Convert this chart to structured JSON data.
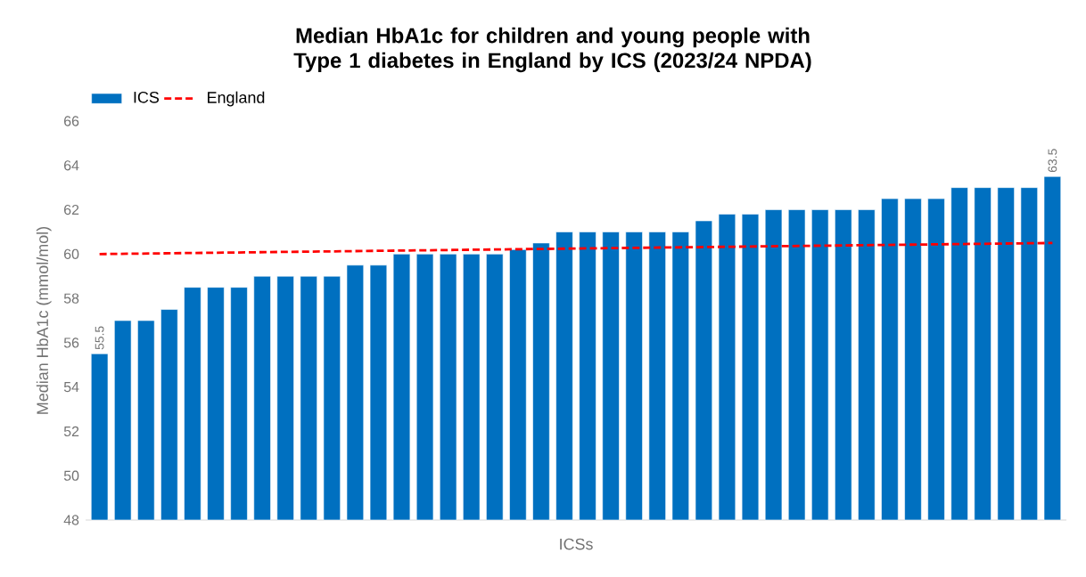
{
  "chart_data": {
    "type": "bar",
    "title": "Median HbA1c for children and young people with Type 1 diabetes in England by ICS (2023/24 NPDA)",
    "xlabel": "ICSs",
    "ylabel": "Median HbA1c (mmol/mol)",
    "categories": [
      null,
      null,
      null,
      null,
      null,
      null,
      null,
      null,
      null,
      null,
      null,
      null,
      null,
      null,
      null,
      null,
      null,
      null,
      null,
      null,
      null,
      null,
      null,
      null,
      null,
      null,
      null,
      null,
      null,
      null,
      null,
      null,
      null,
      null,
      null,
      null,
      null,
      null,
      null,
      null,
      null,
      null
    ],
    "series": [
      {
        "name": "ICS",
        "color": "#0070c0",
        "values": [
          55.5,
          57,
          57,
          57.5,
          58.5,
          58.5,
          58.5,
          59,
          59,
          59,
          59,
          59.5,
          59.5,
          60,
          60,
          60,
          60,
          60,
          60.2,
          60.5,
          61,
          61,
          61,
          61,
          61,
          61,
          61.5,
          61.8,
          61.8,
          62,
          62,
          62,
          62,
          62,
          62.5,
          62.5,
          62.5,
          63,
          63,
          63,
          63,
          63.5
        ],
        "value_labels": [
          "55.5",
          null,
          null,
          null,
          null,
          null,
          null,
          null,
          null,
          null,
          null,
          null,
          null,
          null,
          null,
          null,
          null,
          null,
          null,
          null,
          null,
          null,
          null,
          null,
          null,
          null,
          null,
          null,
          null,
          null,
          null,
          null,
          null,
          null,
          null,
          null,
          null,
          null,
          null,
          null,
          null,
          "63.5"
        ]
      },
      {
        "name": "England",
        "type": "line",
        "color": "#ff0000",
        "line_style": "dashed",
        "values": [
          60.0,
          null,
          null,
          null,
          null,
          null,
          null,
          null,
          null,
          null,
          null,
          null,
          null,
          null,
          null,
          null,
          null,
          null,
          null,
          null,
          null,
          null,
          null,
          null,
          null,
          null,
          null,
          null,
          null,
          null,
          null,
          null,
          null,
          null,
          null,
          null,
          null,
          null,
          null,
          null,
          null,
          60.5
        ]
      }
    ],
    "ylim": [
      48,
      66
    ],
    "yticks": [
      48,
      50,
      52,
      54,
      56,
      58,
      60,
      62,
      64,
      66
    ],
    "grid": false,
    "legend": "top left"
  }
}
